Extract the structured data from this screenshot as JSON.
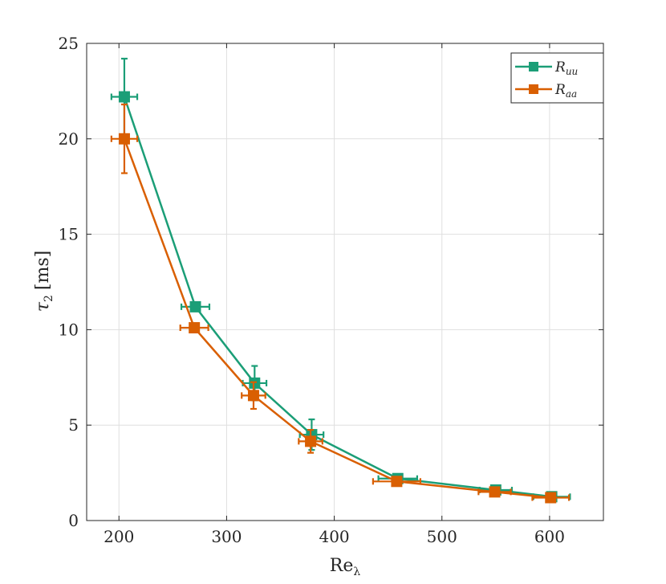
{
  "chart_data": {
    "type": "line",
    "xlabel": "Re_λ",
    "xlabel_main": "Re",
    "xlabel_sub": "λ",
    "ylabel": "τ_2 [ms]",
    "ylabel_main": "τ",
    "ylabel_sub": "2",
    "ylabel_unit": "[ms]",
    "xlim": [
      170,
      650
    ],
    "ylim": [
      0,
      25
    ],
    "xticks": [
      200,
      300,
      400,
      500,
      600
    ],
    "yticks": [
      0,
      5,
      10,
      15,
      20,
      25
    ],
    "grid": true,
    "legend_position": "top-right",
    "series": [
      {
        "name": "R_uu",
        "name_main": "R",
        "name_sub": "uu",
        "color": "#1b9e77",
        "points": [
          {
            "x": 205,
            "y": 22.2,
            "xerr": 12,
            "yerr": 2.0
          },
          {
            "x": 271,
            "y": 11.2,
            "xerr": 13,
            "yerr": 0.2
          },
          {
            "x": 326,
            "y": 7.2,
            "xerr": 11,
            "yerr": 0.9
          },
          {
            "x": 379,
            "y": 4.5,
            "xerr": 11,
            "yerr": 0.8
          },
          {
            "x": 459,
            "y": 2.2,
            "xerr": 18,
            "yerr": 0.2
          },
          {
            "x": 550,
            "y": 1.6,
            "xerr": 15,
            "yerr": 0.15
          },
          {
            "x": 602,
            "y": 1.25,
            "xerr": 17,
            "yerr": 0.1
          }
        ]
      },
      {
        "name": "R_aa",
        "name_main": "R",
        "name_sub": "aa",
        "color": "#d95f02",
        "points": [
          {
            "x": 205,
            "y": 20.0,
            "xerr": 12,
            "yerr": 1.8
          },
          {
            "x": 270,
            "y": 10.1,
            "xerr": 13,
            "yerr": 0.2
          },
          {
            "x": 325,
            "y": 6.55,
            "xerr": 11,
            "yerr": 0.7
          },
          {
            "x": 378,
            "y": 4.15,
            "xerr": 11,
            "yerr": 0.6
          },
          {
            "x": 458,
            "y": 2.05,
            "xerr": 22,
            "yerr": 0.2
          },
          {
            "x": 549,
            "y": 1.5,
            "xerr": 15,
            "yerr": 0.15
          },
          {
            "x": 601,
            "y": 1.2,
            "xerr": 17,
            "yerr": 0.1
          }
        ]
      }
    ]
  }
}
